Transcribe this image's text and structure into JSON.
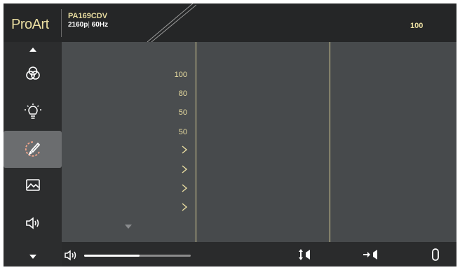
{
  "header": {
    "brand": "ProArt",
    "model": "PA169CDV",
    "resolution": "2160p",
    "refresh": "60Hz",
    "value": "100"
  },
  "sidebar": {
    "items": [
      {
        "icon": "up-arrow-icon"
      },
      {
        "icon": "color-circles-icon"
      },
      {
        "icon": "light-bulb-icon"
      },
      {
        "icon": "palette-brush-icon",
        "selected": true
      },
      {
        "icon": "image-icon"
      },
      {
        "icon": "speaker-icon"
      },
      {
        "icon": "down-arrow-icon"
      }
    ]
  },
  "menu": {
    "values": [
      "100",
      "80",
      "50",
      "50"
    ],
    "submenu_count": 4
  },
  "bottom_bar": {
    "volume_level": 0.52,
    "icons": [
      "speaker-icon",
      "input-up-down-icon",
      "input-arrow-icon",
      "exit-icon"
    ]
  },
  "colors": {
    "accent": "#e8dca0",
    "header_bg": "#252627",
    "panel_bg": "#474a4c",
    "sidebar_bg": "#2c2d2e",
    "selected_bg": "#6b6d6f",
    "highlight": "#f0a48a"
  }
}
